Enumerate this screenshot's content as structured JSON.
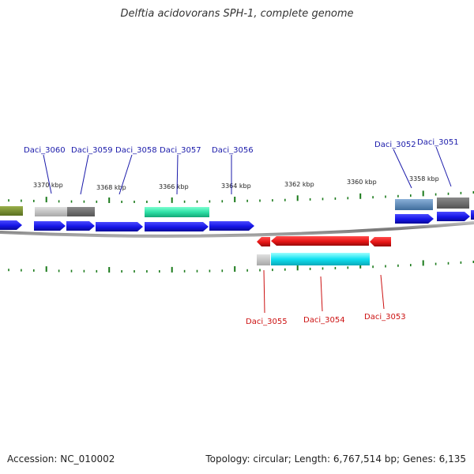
{
  "title": "Delftia acidovorans SPH-1, complete genome",
  "footer": {
    "accession": "Accession: NC_010002",
    "summary": "Topology: circular; Length: 6,767,514 bp; Genes: 6,135"
  },
  "scale_labels": [
    "3370 kbp",
    "3368 kbp",
    "3366 kbp",
    "3364 kbp",
    "3362 kbp",
    "3360 kbp",
    "3358 kbp"
  ],
  "forward_genes": [
    "Daci_3060",
    "Daci_3059",
    "Daci_3058",
    "Daci_3057",
    "Daci_3056",
    "Daci_3052",
    "Daci_3051"
  ],
  "reverse_genes": [
    "Daci_3055",
    "Daci_3054",
    "Daci_3053"
  ],
  "colors": {
    "forward_label": "#1a1aaa",
    "reverse_label": "#cc1111",
    "cds_forward": "#1515e6",
    "cds_reverse": "#e61515",
    "backbone": "#888888",
    "tick": "#1a7a1a"
  }
}
